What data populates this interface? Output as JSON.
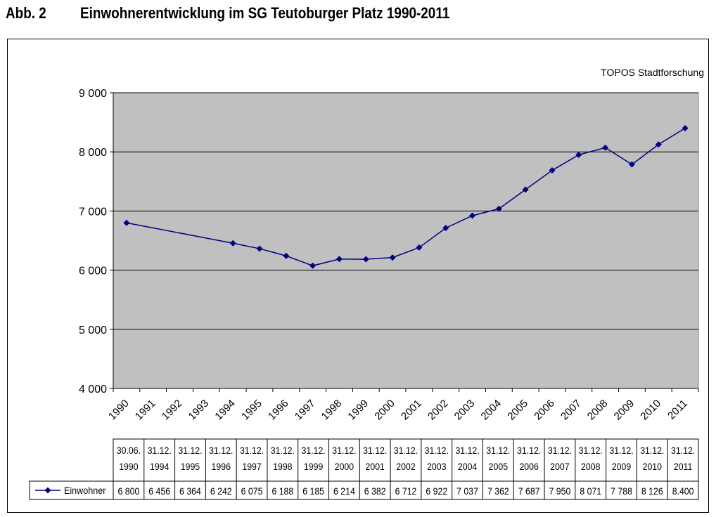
{
  "header": {
    "figure_label": "Abb. 2",
    "title": "Einwohnerentwicklung im SG Teutoburger Platz 1990-2011"
  },
  "chart_data": {
    "type": "line",
    "source_note": "TOPOS Stadtforschung",
    "x_axis_labels": [
      "1990",
      "1991",
      "1992",
      "1993",
      "1994",
      "1995",
      "1996",
      "1997",
      "1998",
      "1999",
      "2000",
      "2001",
      "2002",
      "2003",
      "2004",
      "2005",
      "2006",
      "2007",
      "2008",
      "2009",
      "2010",
      "2011"
    ],
    "ylim": [
      4000,
      9000
    ],
    "yticks": [
      {
        "value": 4000,
        "label": "4 000"
      },
      {
        "value": 5000,
        "label": "5 000"
      },
      {
        "value": 6000,
        "label": "6 000"
      },
      {
        "value": 7000,
        "label": "7 000"
      },
      {
        "value": 8000,
        "label": "8 000"
      },
      {
        "value": 9000,
        "label": "9 000"
      }
    ],
    "grid": true,
    "series": [
      {
        "name": "Einwohner",
        "color": "#000080",
        "marker": "diamond",
        "points": [
          {
            "date_line1": "30.06.",
            "date_line2": "1990",
            "value": 6800,
            "label": "6 800"
          },
          {
            "date_line1": "31.12.",
            "date_line2": "1994",
            "value": 6456,
            "label": "6 456"
          },
          {
            "date_line1": "31.12.",
            "date_line2": "1995",
            "value": 6364,
            "label": "6 364"
          },
          {
            "date_line1": "31.12.",
            "date_line2": "1996",
            "value": 6242,
            "label": "6 242"
          },
          {
            "date_line1": "31.12.",
            "date_line2": "1997",
            "value": 6075,
            "label": "6 075"
          },
          {
            "date_line1": "31.12.",
            "date_line2": "1998",
            "value": 6188,
            "label": "6 188"
          },
          {
            "date_line1": "31.12.",
            "date_line2": "1999",
            "value": 6185,
            "label": "6 185"
          },
          {
            "date_line1": "31.12.",
            "date_line2": "2000",
            "value": 6214,
            "label": "6 214"
          },
          {
            "date_line1": "31.12.",
            "date_line2": "2001",
            "value": 6382,
            "label": "6 382"
          },
          {
            "date_line1": "31.12.",
            "date_line2": "2002",
            "value": 6712,
            "label": "6 712"
          },
          {
            "date_line1": "31.12.",
            "date_line2": "2003",
            "value": 6922,
            "label": "6 922"
          },
          {
            "date_line1": "31.12.",
            "date_line2": "2004",
            "value": 7037,
            "label": "7 037"
          },
          {
            "date_line1": "31.12.",
            "date_line2": "2005",
            "value": 7362,
            "label": "7 362"
          },
          {
            "date_line1": "31.12.",
            "date_line2": "2006",
            "value": 7687,
            "label": "7 687"
          },
          {
            "date_line1": "31.12.",
            "date_line2": "2007",
            "value": 7950,
            "label": "7 950"
          },
          {
            "date_line1": "31.12.",
            "date_line2": "2008",
            "value": 8071,
            "label": "8 071"
          },
          {
            "date_line1": "31.12.",
            "date_line2": "2009",
            "value": 7788,
            "label": "7 788"
          },
          {
            "date_line1": "31.12.",
            "date_line2": "2010",
            "value": 8126,
            "label": "8 126"
          },
          {
            "date_line1": "31.12.",
            "date_line2": "2011",
            "value": 8400,
            "label": "8.400"
          }
        ]
      }
    ],
    "plot_background": "#c0c0c0",
    "gridline_color": "#000000"
  }
}
